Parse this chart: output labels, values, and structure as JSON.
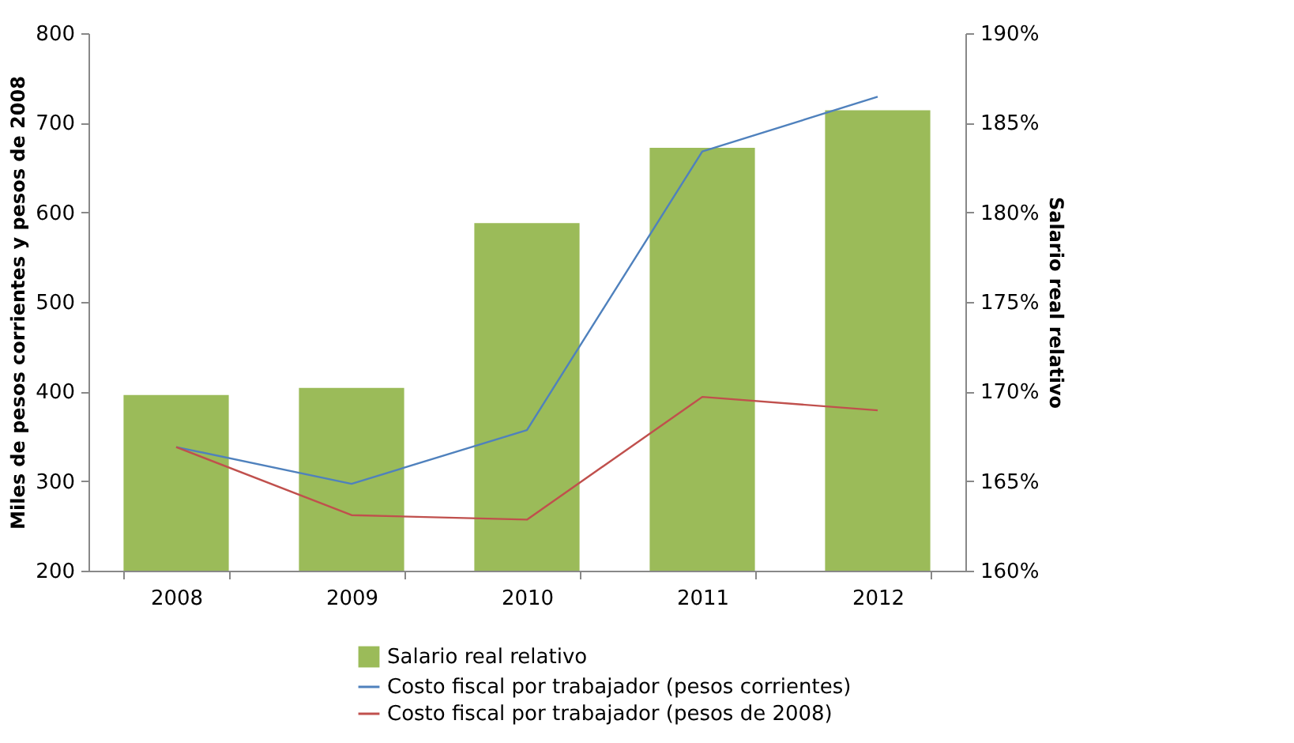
{
  "chart_data": {
    "type": "bar",
    "categories": [
      "2008",
      "2009",
      "2010",
      "2011",
      "2012"
    ],
    "ylabel": "Miles de pesos corrientes y pesos de 2008",
    "y2label": "Salario real relativo",
    "ylim": [
      200,
      800
    ],
    "yticks": [
      200,
      300,
      400,
      500,
      600,
      700,
      800
    ],
    "y2lim": [
      160,
      190
    ],
    "y2ticks": [
      {
        "value": 160,
        "label": "160%"
      },
      {
        "value": 165,
        "label": "165%"
      },
      {
        "value": 170,
        "label": "170%"
      },
      {
        "value": 175,
        "label": "175%"
      },
      {
        "value": 180,
        "label": "180%"
      },
      {
        "value": 185,
        "label": "185%"
      },
      {
        "value": 190,
        "label": "190%"
      }
    ],
    "grid": false,
    "legend": "bottom",
    "series": [
      {
        "name": "Salario real relativo",
        "axis": "y2",
        "color": "#9bbb59",
        "values": [
          169.8,
          170.2,
          179.4,
          183.6,
          185.7
        ]
      },
      {
        "name": "Costo fiscal por trabajador (pesos corrientes)",
        "type": "line",
        "color": "#4f81bd",
        "values": [
          338,
          297,
          357,
          668,
          729
        ]
      },
      {
        "name": "Costo fiscal por trabajador (pesos de 2008)",
        "type": "line",
        "color": "#c0504d",
        "values": [
          338,
          262,
          257,
          394,
          379
        ]
      }
    ]
  }
}
